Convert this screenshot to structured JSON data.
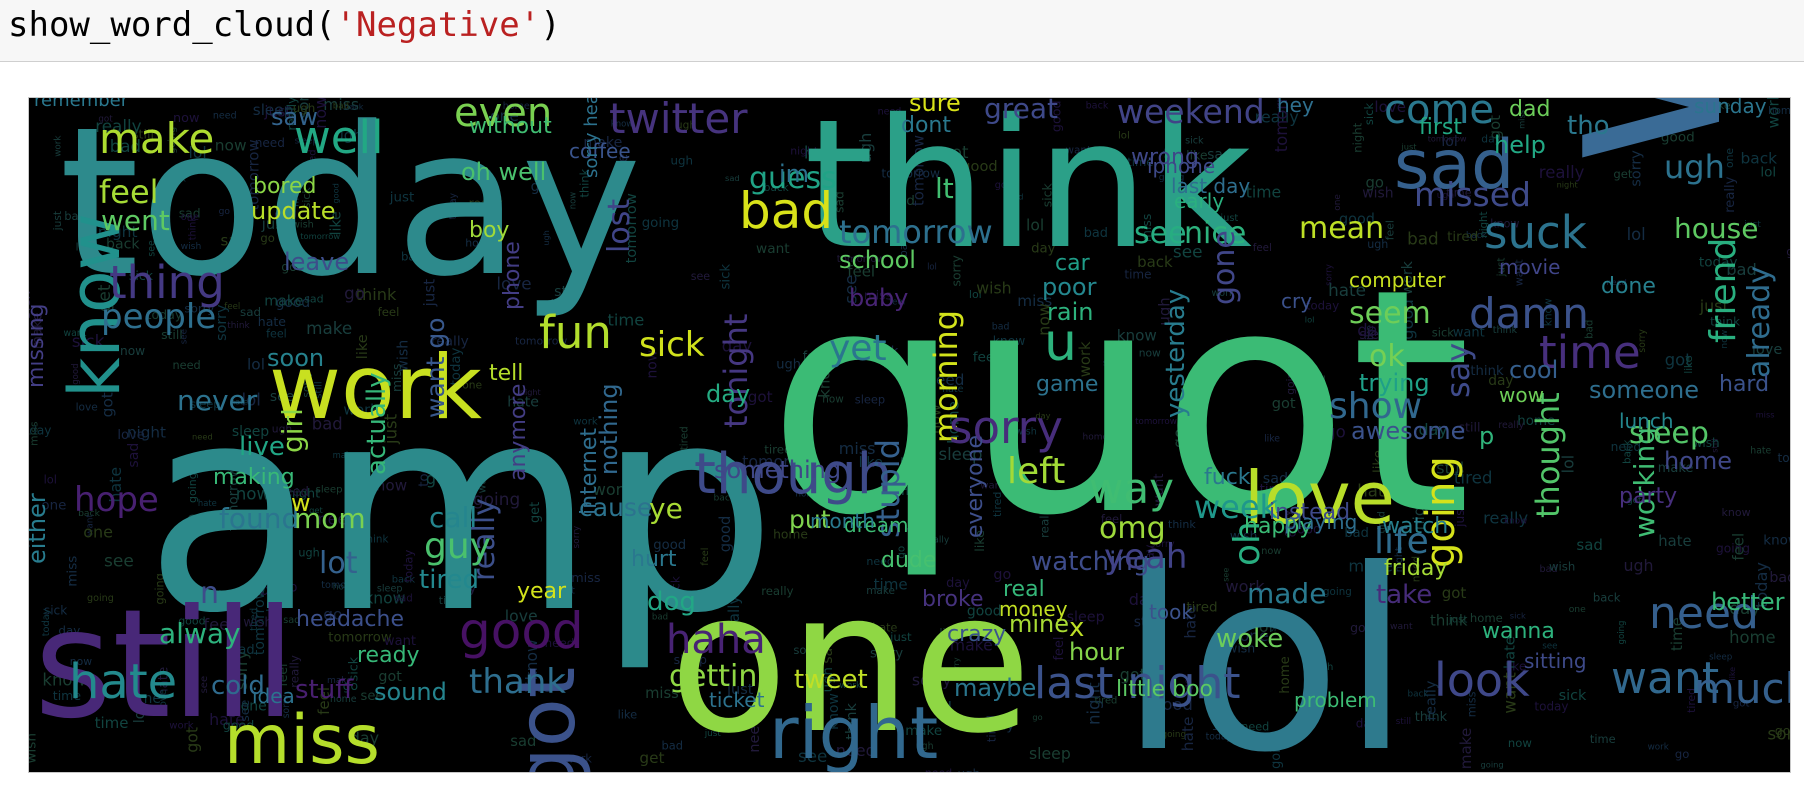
{
  "cell": {
    "func": "show_word_cloud(",
    "arg": "'Negative'",
    "close": ")"
  },
  "wordcloud": {
    "background": "#000000",
    "words": [
      {
        "text": "today",
        "color": "#2d8a8c"
      },
      {
        "text": "think",
        "color": "#2ba088"
      },
      {
        "text": "quot",
        "color": "#3bbb75"
      },
      {
        "text": "amp",
        "color": "#2c8a8b"
      },
      {
        "text": "wish",
        "color": "#3a6b96"
      },
      {
        "text": "lol",
        "color": "#2e7a8d"
      },
      {
        "text": "one",
        "color": "#8fd744"
      },
      {
        "text": "still",
        "color": "#482878"
      },
      {
        "text": "work",
        "color": "#c8e020"
      },
      {
        "text": "know",
        "color": "#21918c"
      },
      {
        "text": "miss",
        "color": "#b5de2b"
      },
      {
        "text": "got",
        "color": "#3b528b"
      },
      {
        "text": "right",
        "color": "#31688e"
      },
      {
        "text": "love",
        "color": "#b8de29"
      },
      {
        "text": "though",
        "color": "#3e4a89"
      },
      {
        "text": "sad",
        "color": "#35608d"
      },
      {
        "text": "bad",
        "color": "#d8e219"
      },
      {
        "text": "make",
        "color": "#addc30"
      },
      {
        "text": "well",
        "color": "#22a884"
      },
      {
        "text": "even",
        "color": "#7ad151"
      },
      {
        "text": "twitter",
        "color": "#46337e"
      },
      {
        "text": "weekend",
        "color": "#414487"
      },
      {
        "text": "come",
        "color": "#2a788e"
      },
      {
        "text": "great",
        "color": "#3e4989"
      },
      {
        "text": "feel",
        "color": "#a5db36"
      },
      {
        "text": "went",
        "color": "#5ec962"
      },
      {
        "text": "missing",
        "color": "#433e85"
      },
      {
        "text": "guess",
        "color": "#20a386"
      },
      {
        "text": "missed",
        "color": "#3e4a89"
      },
      {
        "text": "ugh",
        "color": "#2c728e"
      },
      {
        "text": "friend",
        "color": "#29af7f"
      },
      {
        "text": "suck",
        "color": "#2c738e"
      },
      {
        "text": "house",
        "color": "#5ec962"
      },
      {
        "text": "tomorrow",
        "color": "#2d708e"
      },
      {
        "text": "mean",
        "color": "#bddf26"
      },
      {
        "text": "see",
        "color": "#27ad81"
      },
      {
        "text": "nice",
        "color": "#2db27d"
      },
      {
        "text": "thing",
        "color": "#443983"
      },
      {
        "text": "people",
        "color": "#2e6f8e"
      },
      {
        "text": "fun",
        "color": "#b2dd2d"
      },
      {
        "text": "sick",
        "color": "#d0e11c"
      },
      {
        "text": "lost",
        "color": "#404588"
      },
      {
        "text": "tonight",
        "color": "#453781"
      },
      {
        "text": "damn",
        "color": "#3b528b"
      },
      {
        "text": "time",
        "color": "#472f7d"
      },
      {
        "text": "seem",
        "color": "#6ece58"
      },
      {
        "text": "ok",
        "color": "#75d054"
      },
      {
        "text": "say",
        "color": "#3e4a89"
      },
      {
        "text": "show",
        "color": "#31688e"
      },
      {
        "text": "yet",
        "color": "#2a768e"
      },
      {
        "text": "u",
        "color": "#2db27d"
      },
      {
        "text": "morning",
        "color": "#d2e21b"
      },
      {
        "text": "sorry",
        "color": "#472d7b"
      },
      {
        "text": "left",
        "color": "#a2da37"
      },
      {
        "text": "way",
        "color": "#40bd72"
      },
      {
        "text": "week",
        "color": "#1f978b"
      },
      {
        "text": "omg",
        "color": "#9dd93b"
      },
      {
        "text": "going",
        "color": "#d5e21a"
      },
      {
        "text": "thought",
        "color": "#52c569"
      },
      {
        "text": "working",
        "color": "#3fbc73"
      },
      {
        "text": "already",
        "color": "#2f6c8e"
      },
      {
        "text": "sleep",
        "color": "#54c568"
      },
      {
        "text": "hope",
        "color": "#482071"
      },
      {
        "text": "never",
        "color": "#2c728e"
      },
      {
        "text": "live",
        "color": "#21a685"
      },
      {
        "text": "found",
        "color": "#2b758e"
      },
      {
        "text": "girl",
        "color": "#8bd646"
      },
      {
        "text": "actually",
        "color": "#35b779"
      },
      {
        "text": "want go",
        "color": "#38588c"
      },
      {
        "text": "really",
        "color": "#3c4f8a"
      },
      {
        "text": "anymore",
        "color": "#433d84"
      },
      {
        "text": "guy",
        "color": "#4ac16d"
      },
      {
        "text": "call",
        "color": "#25858e"
      },
      {
        "text": "lot",
        "color": "#34618d"
      },
      {
        "text": "mom",
        "color": "#7ad151"
      },
      {
        "text": "tired",
        "color": "#23888e"
      },
      {
        "text": "year",
        "color": "#d2e21b"
      },
      {
        "text": "cause",
        "color": "#2c738e"
      },
      {
        "text": "ye",
        "color": "#a8db34"
      },
      {
        "text": "something",
        "color": "#3f4788"
      },
      {
        "text": "stupid",
        "color": "#35608d"
      },
      {
        "text": "everyone",
        "color": "#3d4e8a"
      },
      {
        "text": "watching",
        "color": "#3e4c8a"
      },
      {
        "text": "yeah",
        "color": "#414287"
      },
      {
        "text": "oh",
        "color": "#28ae80"
      },
      {
        "text": "life",
        "color": "#2f6c8e"
      },
      {
        "text": "made",
        "color": "#29798e"
      },
      {
        "text": "need",
        "color": "#355f8d"
      },
      {
        "text": "hate",
        "color": "#238a8d"
      },
      {
        "text": "alway",
        "color": "#2db27d"
      },
      {
        "text": "good",
        "color": "#471164"
      },
      {
        "text": "haha",
        "color": "#482374"
      },
      {
        "text": "thank",
        "color": "#2e6e8e"
      },
      {
        "text": "getting",
        "color": "#8fd744"
      },
      {
        "text": "tweet",
        "color": "#c0df25"
      },
      {
        "text": "last night",
        "color": "#3b528b"
      },
      {
        "text": "look",
        "color": "#3f4889"
      },
      {
        "text": "want",
        "color": "#31688e"
      },
      {
        "text": "much",
        "color": "#35608d"
      },
      {
        "text": "cold",
        "color": "#2f6b8e"
      },
      {
        "text": "sound",
        "color": "#25848e"
      },
      {
        "text": "stuff",
        "color": "#481f70"
      },
      {
        "text": "dog",
        "color": "#22a785"
      },
      {
        "text": "maybe",
        "color": "#2a768e"
      },
      {
        "text": "little boo",
        "color": "#5cc863"
      },
      {
        "text": "hour",
        "color": "#84d44b"
      },
      {
        "text": "better",
        "color": "#37b878"
      },
      {
        "text": "school",
        "color": "#5ec962"
      },
      {
        "text": "lt",
        "color": "#42be71"
      },
      {
        "text": "phone",
        "color": "#433d84"
      },
      {
        "text": "rain",
        "color": "#2db27d"
      },
      {
        "text": "poor",
        "color": "#24878e"
      },
      {
        "text": "car",
        "color": "#1f9e89"
      },
      {
        "text": "day",
        "color": "#25ab82"
      },
      {
        "text": "put",
        "color": "#7fd34e"
      },
      {
        "text": "gone",
        "color": "#404688"
      },
      {
        "text": "cry",
        "color": "#3b518b"
      },
      {
        "text": "help",
        "color": "#22a884"
      },
      {
        "text": "tho",
        "color": "#2a788e"
      },
      {
        "text": "done",
        "color": "#27808e"
      },
      {
        "text": "sure",
        "color": "#d8e219"
      },
      {
        "text": "dad",
        "color": "#6ccd5a"
      },
      {
        "text": "hey",
        "color": "#2e6f8e"
      },
      {
        "text": "im",
        "color": "#2c718e"
      },
      {
        "text": "oh well",
        "color": "#4ac16d"
      },
      {
        "text": "saw",
        "color": "#33638d"
      },
      {
        "text": "without",
        "color": "#40bd72"
      },
      {
        "text": "leave",
        "color": "#3d4d8a"
      },
      {
        "text": "ready",
        "color": "#37b878"
      },
      {
        "text": "woke",
        "color": "#6ccd5a"
      },
      {
        "text": "happy",
        "color": "#3bbb75"
      },
      {
        "text": "trying",
        "color": "#1fa088"
      },
      {
        "text": "yesterday",
        "color": "#287c8e"
      },
      {
        "text": "boy",
        "color": "#a0da39"
      },
      {
        "text": "update",
        "color": "#b8de29"
      },
      {
        "text": "bored",
        "color": "#8bd646"
      },
      {
        "text": "baby",
        "color": "#482475"
      },
      {
        "text": "game",
        "color": "#2c728e"
      },
      {
        "text": "awesome",
        "color": "#3b528b"
      },
      {
        "text": "p",
        "color": "#30b47b"
      },
      {
        "text": "home",
        "color": "#3f4788"
      },
      {
        "text": "cool",
        "color": "#355f8d"
      },
      {
        "text": "someone",
        "color": "#2e6e8e"
      },
      {
        "text": "n",
        "color": "#3e4c8a"
      },
      {
        "text": "hurt",
        "color": "#2a788e"
      },
      {
        "text": "x",
        "color": "#bddf26"
      },
      {
        "text": "mine",
        "color": "#a8db34"
      },
      {
        "text": "w",
        "color": "#d2e21b"
      },
      {
        "text": "lunch",
        "color": "#24878e"
      },
      {
        "text": "either",
        "color": "#287c8e"
      },
      {
        "text": "nothing",
        "color": "#31688e"
      },
      {
        "text": "internet",
        "color": "#2e6e8e"
      },
      {
        "text": "broke",
        "color": "#46327e"
      },
      {
        "text": "crazy",
        "color": "#3a548c"
      },
      {
        "text": "real",
        "color": "#35b779"
      },
      {
        "text": "idea",
        "color": "#2c728e"
      },
      {
        "text": "took",
        "color": "#3b528b"
      },
      {
        "text": "wanna",
        "color": "#2db27d"
      },
      {
        "text": "friday",
        "color": "#a5db36"
      },
      {
        "text": "take",
        "color": "#472c7a"
      },
      {
        "text": "watch",
        "color": "#277f8e"
      },
      {
        "text": "headache",
        "color": "#3c508b"
      },
      {
        "text": "making",
        "color": "#38b977"
      },
      {
        "text": "dont",
        "color": "#2a788e"
      },
      {
        "text": "soon",
        "color": "#26828e"
      },
      {
        "text": "tell",
        "color": "#b5de2b"
      },
      {
        "text": "iphone",
        "color": "#3e4a89"
      },
      {
        "text": "wow",
        "color": "#6ece58"
      },
      {
        "text": "computer",
        "color": "#c8e020"
      },
      {
        "text": "problem",
        "color": "#3dbc74"
      },
      {
        "text": "fuck",
        "color": "#2a788e"
      },
      {
        "text": "party",
        "color": "#472f7d"
      },
      {
        "text": "instead",
        "color": "#3e4989"
      },
      {
        "text": "sunday",
        "color": "#2b758e"
      },
      {
        "text": "coffee",
        "color": "#3a548c"
      },
      {
        "text": "first",
        "color": "#22a884"
      },
      {
        "text": "last day",
        "color": "#2e6e8e"
      },
      {
        "text": "early",
        "color": "#2ab07f"
      },
      {
        "text": "wrong",
        "color": "#3f4788"
      },
      {
        "text": "ticket",
        "color": "#2c728e"
      },
      {
        "text": "movie",
        "color": "#404588"
      },
      {
        "text": "hard",
        "color": "#3b528b"
      },
      {
        "text": "money",
        "color": "#c2df23"
      },
      {
        "text": "dream",
        "color": "#3dbc74"
      },
      {
        "text": "month",
        "color": "#29798e"
      },
      {
        "text": "dude",
        "color": "#46c06f"
      },
      {
        "text": "sorry hear",
        "color": "#2c728e"
      },
      {
        "text": "sitting",
        "color": "#3e4a89"
      },
      {
        "text": "playing",
        "color": "#2e6e8e"
      },
      {
        "text": "remember",
        "color": "#2a788e"
      }
    ]
  }
}
